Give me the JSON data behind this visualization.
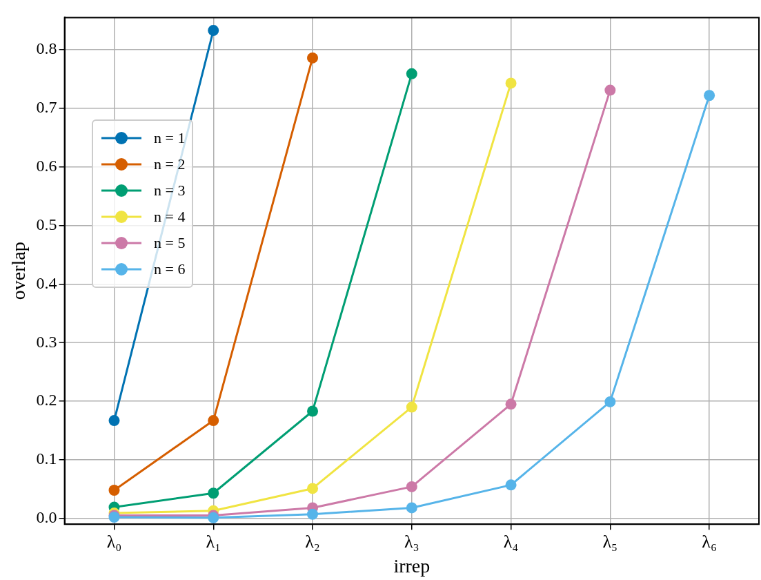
{
  "chart_data": {
    "type": "line",
    "xlabel": "irrep",
    "ylabel": "overlap",
    "categories": [
      "λ₀",
      "λ₁",
      "λ₂",
      "λ₃",
      "λ₄",
      "λ₅",
      "λ₆"
    ],
    "series": [
      {
        "name": "n = 1",
        "color": "#0072b2",
        "values": [
          0.167,
          0.833,
          null,
          null,
          null,
          null,
          null
        ]
      },
      {
        "name": "n = 2",
        "color": "#d55e00",
        "values": [
          0.048,
          0.167,
          0.786,
          null,
          null,
          null,
          null
        ]
      },
      {
        "name": "n = 3",
        "color": "#009e73",
        "values": [
          0.019,
          0.043,
          0.183,
          0.759,
          null,
          null,
          null
        ]
      },
      {
        "name": "n = 4",
        "color": "#f0e442",
        "values": [
          0.009,
          0.013,
          0.051,
          0.19,
          0.743,
          null,
          null
        ]
      },
      {
        "name": "n = 5",
        "color": "#cc79a7",
        "values": [
          0.005,
          0.005,
          0.018,
          0.054,
          0.195,
          0.731,
          null
        ]
      },
      {
        "name": "n = 6",
        "color": "#56b4e9",
        "values": [
          0.002,
          0.001,
          0.007,
          0.018,
          0.057,
          0.199,
          0.722
        ]
      }
    ],
    "ylim": [
      -0.01,
      0.855
    ],
    "yticks": [
      {
        "value": 0,
        "label": "0.0"
      },
      0.1,
      0.2,
      0.3,
      0.4,
      0.5,
      0.6,
      0.7,
      0.8
    ],
    "grid": true,
    "legend": "left",
    "marker": "circle",
    "line_style": "solid"
  }
}
